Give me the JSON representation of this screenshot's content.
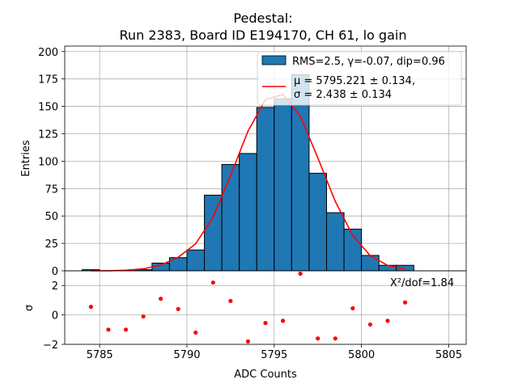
{
  "chart_data": [
    {
      "type": "bar",
      "panel": "histogram",
      "title_line1": "Pedestal:",
      "title_line2": "Run 2383, Board ID E194170, CH 61, lo gain",
      "xlabel": "ADC Counts",
      "ylabel": "Entries",
      "xlim": [
        5783,
        5806
      ],
      "ylim": [
        0,
        205
      ],
      "grid": true,
      "yticks": [
        0,
        25,
        50,
        75,
        100,
        125,
        150,
        175,
        200
      ],
      "xticks": [
        5785,
        5790,
        5795,
        5800,
        5805
      ],
      "bins": {
        "edges": [
          5784,
          5785,
          5786,
          5787,
          5788,
          5789,
          5790,
          5791,
          5792,
          5793,
          5794,
          5795,
          5796,
          5797,
          5798,
          5799,
          5800,
          5801,
          5802,
          5803
        ],
        "counts": [
          1,
          0,
          0,
          1,
          7,
          12,
          19,
          69,
          97,
          107,
          149,
          157,
          179,
          89,
          53,
          38,
          14,
          5,
          5
        ],
        "color": "#1f77b4"
      },
      "fit": {
        "name": "fit-curve",
        "color": "#ff0000",
        "x": [
          5784.5,
          5785.5,
          5786.5,
          5787.5,
          5788.5,
          5789.5,
          5790.5,
          5791.5,
          5792.5,
          5793.5,
          5794.5,
          5795.5,
          5796.5,
          5797.5,
          5798.5,
          5799.5,
          5800.5,
          5801.5,
          5802.5
        ],
        "y": [
          0.0,
          0.1,
          0.5,
          1.8,
          5.2,
          12.3,
          24.6,
          49.0,
          87.0,
          127.4,
          156.2,
          160.9,
          140.9,
          103.0,
          63.2,
          32.3,
          13.8,
          4.9,
          1.5
        ]
      },
      "legend": {
        "position": "top-right",
        "entries": [
          {
            "label": "RMS=2.5, γ=-0.07, dip=0.96",
            "kind": "patch"
          },
          {
            "label_line1": "μ = 5795.221 ± 0.134,",
            "label_line2": "σ = 2.438 ± 0.134",
            "kind": "line"
          }
        ]
      }
    },
    {
      "type": "scatter",
      "panel": "residuals",
      "ylabel": "σ",
      "annotation": "X²/dof=1.84",
      "ylim": [
        -2,
        3
      ],
      "yticks": [
        -2,
        0,
        2
      ],
      "color": "#ff0000",
      "x": [
        5784.5,
        5785.5,
        5786.5,
        5787.5,
        5788.5,
        5789.5,
        5790.5,
        5791.5,
        5792.5,
        5793.5,
        5794.5,
        5795.5,
        5796.5,
        5797.5,
        5798.5,
        5799.5,
        5800.5,
        5801.5,
        5802.5
      ],
      "y": [
        0.55,
        -1.0,
        -1.0,
        -0.1,
        1.1,
        0.4,
        -1.2,
        2.2,
        0.95,
        -1.8,
        -0.55,
        -0.4,
        2.8,
        -1.6,
        -1.6,
        0.45,
        -0.65,
        -0.4,
        0.85
      ]
    }
  ]
}
